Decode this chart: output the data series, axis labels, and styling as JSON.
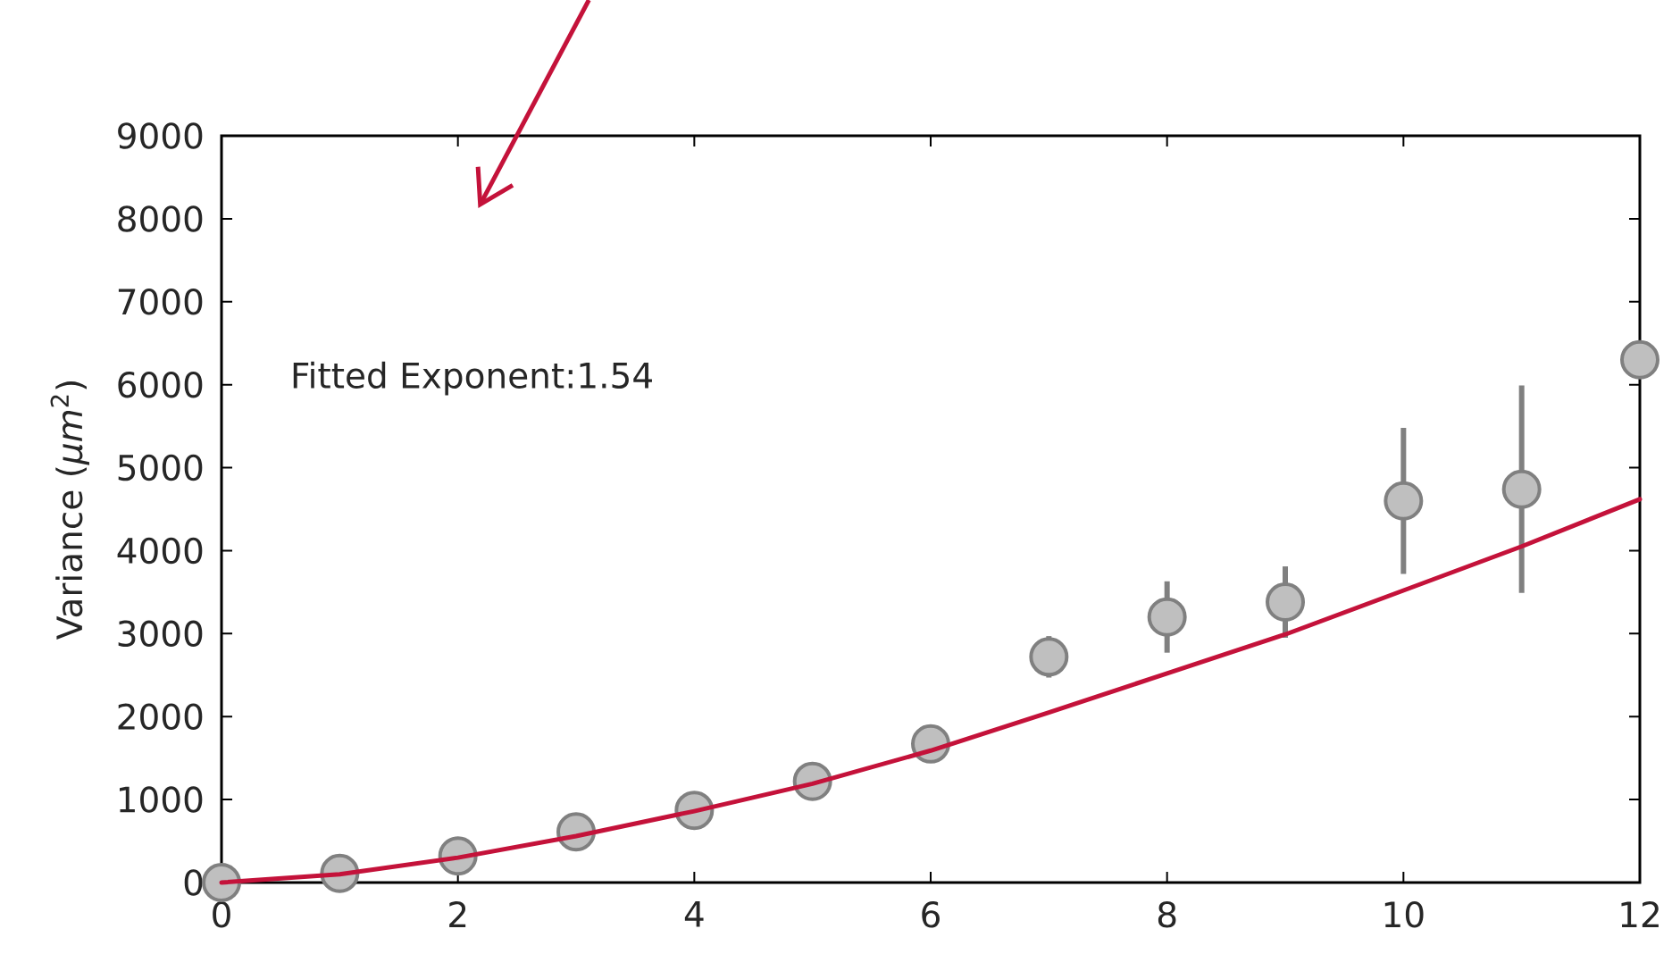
{
  "chart_data": {
    "type": "scatter",
    "ylabel": "Variance (*μm*$^{2}$)",
    "annotations": [
      "Fitted Exponent:1.54"
    ],
    "x": [
      0,
      1,
      2,
      3,
      4,
      5,
      6,
      7,
      8,
      9,
      10,
      11,
      12
    ],
    "series": [
      {
        "color": "#bfbfbf",
        "marker": "circle",
        "values": [
          0,
          110,
          320,
          610,
          870,
          1220,
          1670,
          2720,
          3200,
          3380,
          4600,
          4740,
          6300
        ],
        "errors": [
          null,
          null,
          null,
          null,
          null,
          null,
          null,
          250,
          430,
          430,
          880,
          1250,
          null
        ]
      },
      {
        "type": "line",
        "color": "#c4123a",
        "x": [
          0,
          1,
          2,
          3,
          4,
          5,
          6,
          7,
          8,
          9,
          10,
          11,
          12
        ],
        "values": [
          0,
          100,
          300,
          560,
          860,
          1190,
          1590,
          2050,
          2520,
          2990,
          3520,
          4050,
          4620
        ]
      }
    ],
    "xlim": [
      0,
      12
    ],
    "ylim": [
      0,
      9000
    ],
    "xticks": [
      0,
      2,
      4,
      6,
      8,
      10,
      12
    ],
    "yticks": [
      0,
      1000,
      2000,
      3000,
      4000,
      5000,
      6000,
      7000,
      8000,
      9000
    ]
  }
}
